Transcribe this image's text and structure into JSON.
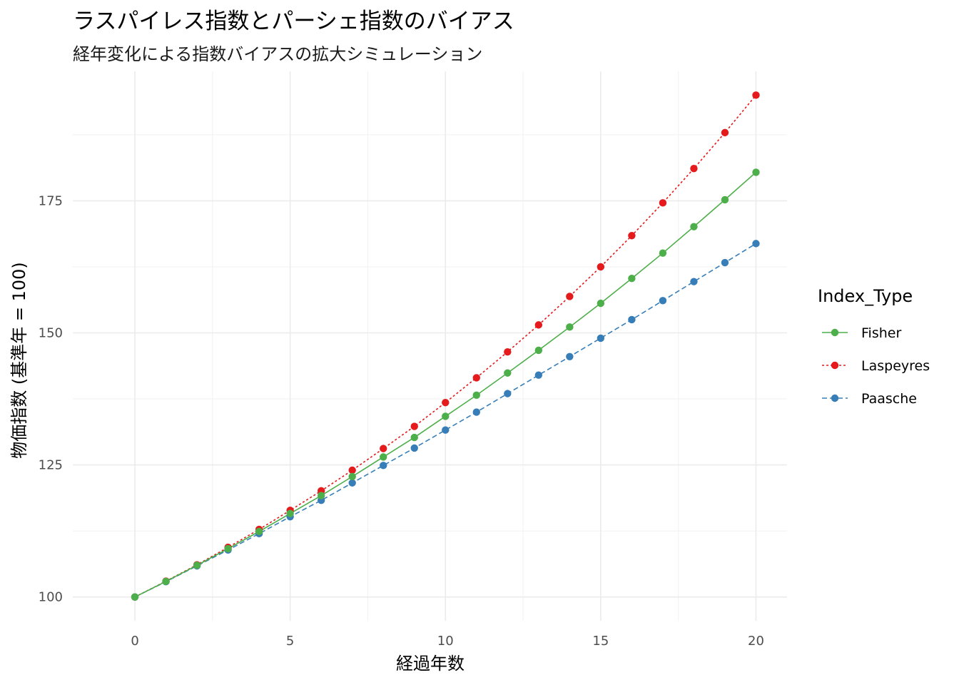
{
  "chart_data": {
    "type": "line",
    "title": "ラスパイレス指数とパーシェ指数のバイアス",
    "subtitle": "経年変化による指数バイアスの拡大シミュレーション",
    "xlabel": "経過年数",
    "ylabel": "物価指数 (基準年 = 100)",
    "xlim": [
      -2.0,
      21.0
    ],
    "ylim": [
      95.5,
      199.5
    ],
    "x_ticks": [
      0,
      5,
      10,
      15,
      20
    ],
    "y_ticks": [
      100,
      125,
      150,
      175
    ],
    "grid": true,
    "legend": {
      "title": "Index_Type",
      "position": "right"
    },
    "x": [
      0,
      1,
      2,
      3,
      4,
      5,
      6,
      7,
      8,
      9,
      10,
      11,
      12,
      13,
      14,
      15,
      16,
      17,
      18,
      19,
      20
    ],
    "series": [
      {
        "name": "Laspeyres",
        "color": "#e41a1c",
        "dash": "dotted",
        "values": [
          100.0,
          103.0,
          106.1,
          109.4,
          112.8,
          116.4,
          120.1,
          124.0,
          128.1,
          132.3,
          136.8,
          141.5,
          146.4,
          151.5,
          156.9,
          162.5,
          168.4,
          174.6,
          181.1,
          187.9,
          195.0
        ]
      },
      {
        "name": "Paasche",
        "color": "#377eb8",
        "dash": "dashed",
        "values": [
          100.0,
          102.9,
          105.9,
          108.9,
          112.0,
          115.2,
          118.3,
          121.6,
          124.9,
          128.2,
          131.6,
          135.0,
          138.5,
          142.0,
          145.5,
          149.0,
          152.5,
          156.1,
          159.7,
          163.3,
          166.9
        ]
      },
      {
        "name": "Fisher",
        "color": "#4daf4a",
        "dash": "solid",
        "values": [
          100.0,
          102.95,
          106.0,
          109.15,
          112.4,
          115.8,
          119.2,
          122.8,
          126.5,
          130.2,
          134.2,
          138.2,
          142.4,
          146.7,
          151.1,
          155.6,
          160.3,
          165.1,
          170.1,
          175.2,
          180.4
        ]
      }
    ],
    "legend_order": [
      "Fisher",
      "Laspeyres",
      "Paasche"
    ]
  }
}
